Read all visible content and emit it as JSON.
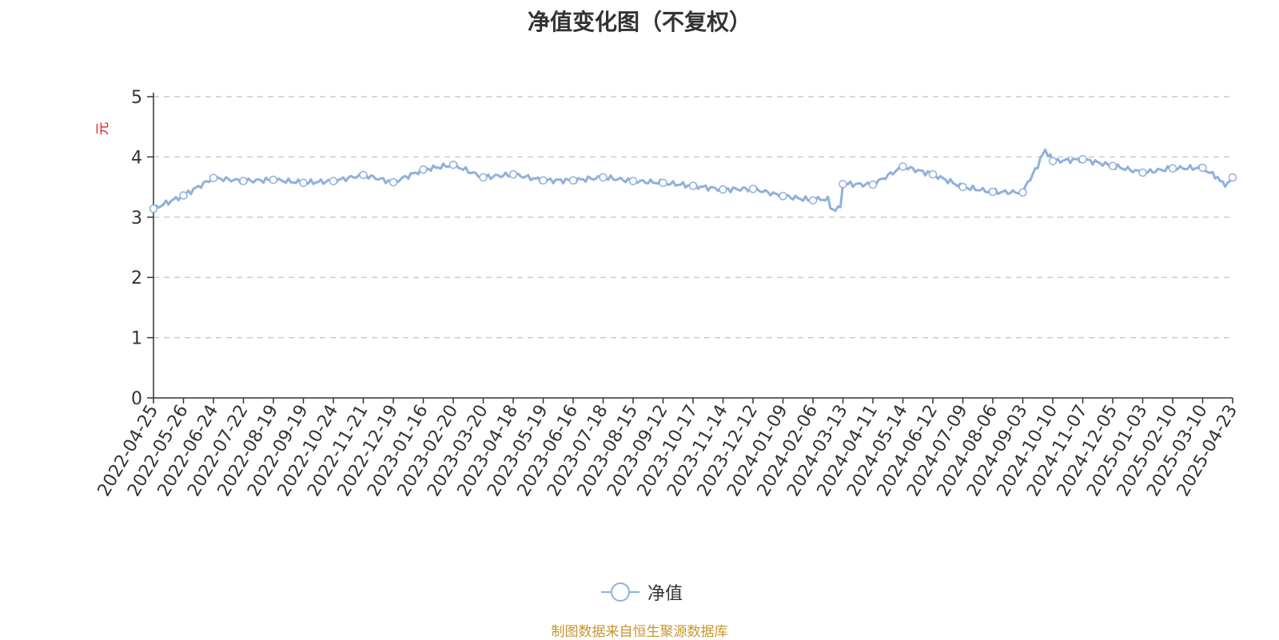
{
  "title": "净值变化图（不复权）",
  "source": "制图数据来自恒生聚源数据库",
  "colors": {
    "line": "#8fb0dd",
    "grid": "#cccccc",
    "axis": "#333333",
    "ylabel": "#e8141b",
    "source": "#c8962e"
  },
  "chart_data": {
    "type": "line",
    "title": "净值变化图（不复权）",
    "ylabel": "元",
    "xlabel": "",
    "ylim": [
      0,
      5
    ],
    "yticks": [
      0,
      1,
      2,
      3,
      4,
      5
    ],
    "grid": true,
    "legend_position": "bottom-center",
    "categories": [
      "2022-04-25",
      "2022-05-26",
      "2022-06-24",
      "2022-07-22",
      "2022-08-19",
      "2022-09-19",
      "2022-10-24",
      "2022-11-21",
      "2022-12-19",
      "2023-01-16",
      "2023-02-20",
      "2023-03-20",
      "2023-04-18",
      "2023-05-19",
      "2023-06-16",
      "2023-07-18",
      "2023-08-15",
      "2023-09-12",
      "2023-10-17",
      "2023-11-14",
      "2023-12-12",
      "2024-01-09",
      "2024-02-06",
      "2024-03-13",
      "2024-04-11",
      "2024-05-14",
      "2024-06-12",
      "2024-07-09",
      "2024-08-06",
      "2024-09-03",
      "2024-10-10",
      "2024-11-07",
      "2024-12-05",
      "2025-01-03",
      "2025-02-10",
      "2025-03-10",
      "2025-04-23"
    ],
    "series": [
      {
        "name": "净值",
        "values": [
          3.14,
          3.36,
          3.65,
          3.6,
          3.62,
          3.57,
          3.6,
          3.7,
          3.58,
          3.79,
          3.87,
          3.66,
          3.71,
          3.61,
          3.61,
          3.66,
          3.6,
          3.57,
          3.52,
          3.46,
          3.47,
          3.35,
          3.28,
          3.55,
          3.54,
          3.84,
          3.71,
          3.5,
          3.42,
          3.41,
          3.93,
          3.96,
          3.85,
          3.74,
          3.81,
          3.82,
          3.66
        ],
        "extra_points": [
          {
            "after": 22,
            "values": [
              3.1
            ]
          },
          {
            "after": 29,
            "values": [
              4.08
            ]
          },
          {
            "after": 35,
            "values": [
              3.55
            ]
          }
        ]
      }
    ]
  },
  "legend": {
    "label": "净值"
  }
}
